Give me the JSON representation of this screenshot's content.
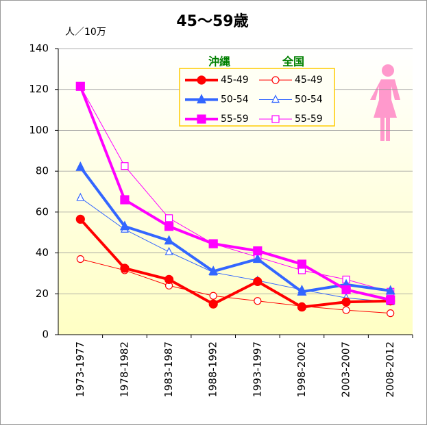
{
  "chart_data": {
    "type": "line",
    "title": "45～59歳",
    "y_label": "人／10万",
    "categories": [
      "1973-1977",
      "1978-1982",
      "1983-1987",
      "1988-1992",
      "1993-1997",
      "1998-2002",
      "2003-2007",
      "2008-2012"
    ],
    "ylim": [
      0,
      140
    ],
    "yticks": [
      0,
      20,
      40,
      60,
      80,
      100,
      120,
      140
    ],
    "grid": true,
    "groups": [
      {
        "name": "沖縄",
        "series": [
          {
            "name": "45-49",
            "color": "#ff0000",
            "marker": "circle",
            "values": [
              56.5,
              32.5,
              27,
              15,
              26,
              13.5,
              16,
              16.5
            ]
          },
          {
            "name": "50-54",
            "color": "#3366ff",
            "marker": "triangle",
            "values": [
              82,
              53,
              46,
              31,
              37,
              21,
              24.5,
              21.5
            ]
          },
          {
            "name": "55-59",
            "color": "#ff00ff",
            "marker": "square",
            "values": [
              121.5,
              66,
              53,
              44.5,
              41,
              34.5,
              22,
              17
            ]
          }
        ]
      },
      {
        "name": "全国",
        "series": [
          {
            "name": "45-49",
            "color": "#ff0000",
            "marker": "circle",
            "values": [
              37,
              31.5,
              24,
              19,
              16.5,
              14,
              12,
              10.5
            ]
          },
          {
            "name": "50-54",
            "color": "#3366ff",
            "marker": "triangle",
            "values": [
              67,
              51.5,
              40.5,
              30.5,
              26.5,
              22,
              18,
              16
            ]
          },
          {
            "name": "55-59",
            "color": "#ff00ff",
            "marker": "square",
            "values": [
              121.5,
              82.5,
              57,
              44.5,
              38,
              31.5,
              27,
              21
            ]
          }
        ]
      }
    ]
  }
}
